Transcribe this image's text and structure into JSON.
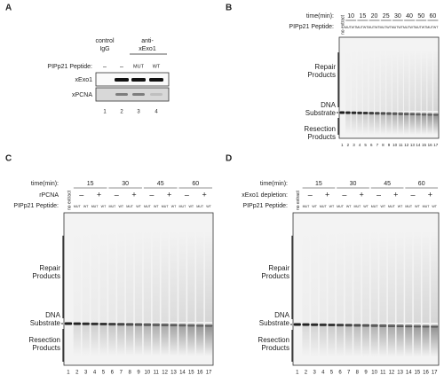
{
  "panel_a": {
    "letter": "A",
    "control_header": [
      "control",
      "IgG"
    ],
    "anti_header": [
      "anti-",
      "xExo1"
    ],
    "peptide_label": "PIPp21 Peptide:",
    "peptide": [
      "–",
      "–",
      "MUT",
      "WT"
    ],
    "rows": [
      "xExo1",
      "xPCNA"
    ],
    "lanes": [
      1,
      2,
      3,
      4
    ]
  },
  "panel_b": {
    "letter": "B",
    "time_label": "time(min):",
    "times": [
      10,
      15,
      20,
      25,
      30,
      40,
      50,
      60
    ],
    "peptide_label": "PIPp21 Peptide:",
    "no_extract": "no extract",
    "peptide": [
      "MUT",
      "WT",
      "MUT",
      "WT",
      "MUT",
      "WT",
      "MUT",
      "WT",
      "MUT",
      "WT",
      "MUT",
      "WT",
      "MUT",
      "WT",
      "MUT",
      "WT"
    ],
    "repair": [
      "Repair",
      "Products"
    ],
    "substrate": [
      "DNA",
      "Substrate"
    ],
    "resection": [
      "Resection",
      "Products"
    ],
    "lanes": [
      1,
      2,
      3,
      4,
      5,
      6,
      7,
      8,
      9,
      10,
      11,
      12,
      13,
      14,
      15,
      16,
      17
    ]
  },
  "panel_c": {
    "letter": "C",
    "time_label": "time(min):",
    "times": [
      15,
      30,
      45,
      60
    ],
    "condition_label": "rPCNA",
    "conditions": [
      "–",
      "+",
      "–",
      "+",
      "–",
      "+",
      "–",
      "+"
    ],
    "peptide_label": "PIPp21 Peptide:",
    "no_extract": "no extract",
    "peptide": [
      "MUT",
      "WT",
      "MUT",
      "WT",
      "MUT",
      "WT",
      "MUT",
      "WT",
      "MUT",
      "WT",
      "MUT",
      "WT",
      "MUT",
      "WT",
      "MUT",
      "WT"
    ],
    "repair": [
      "Repair",
      "Products"
    ],
    "substrate": [
      "DNA",
      "Substrate"
    ],
    "resection": [
      "Resection",
      "Products"
    ],
    "lanes": [
      1,
      2,
      3,
      4,
      5,
      6,
      7,
      8,
      9,
      10,
      11,
      12,
      13,
      14,
      15,
      16,
      17
    ]
  },
  "panel_d": {
    "letter": "D",
    "time_label": "time(min):",
    "times": [
      15,
      30,
      45,
      60
    ],
    "condition_label": "xExo1 depletion:",
    "conditions": [
      "–",
      "+",
      "–",
      "+",
      "–",
      "+",
      "–",
      "+"
    ],
    "peptide_label": "PIPp21 Peptide:",
    "no_extract": "no extract",
    "peptide": [
      "MUT",
      "WT",
      "MUT",
      "WT",
      "MUT",
      "WT",
      "MUT",
      "WT",
      "MUT",
      "WT",
      "MUT",
      "WT",
      "MUT",
      "WT",
      "MUT",
      "WT"
    ],
    "repair": [
      "Repair",
      "Products"
    ],
    "substrate": [
      "DNA",
      "Substrate"
    ],
    "resection": [
      "Resection",
      "Products"
    ],
    "lanes": [
      1,
      2,
      3,
      4,
      5,
      6,
      7,
      8,
      9,
      10,
      11,
      12,
      13,
      14,
      15,
      16,
      17
    ]
  }
}
